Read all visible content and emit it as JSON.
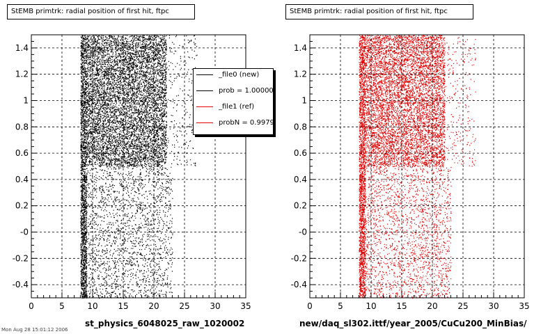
{
  "left_title": "StEMB primtrk: radial position of first hit, ftpc",
  "right_title": "StEMB primtrk: radial position of first hit, ftpc",
  "footer_text": "Mon Aug 28 15:01:12 2006",
  "legend": {
    "entries": [
      {
        "label": "_file0 (new)",
        "color": "#000000"
      },
      {
        "label": "prob = 1.000000",
        "color": "#000000"
      },
      {
        "label": "_file1 (ref)",
        "color": "#e00000"
      },
      {
        "label": "probN = 0.997986",
        "color": "#e00000"
      }
    ]
  },
  "chart_data": [
    {
      "type": "scatter",
      "title": "StEMB primtrk: radial position of first hit, ftpc",
      "xlabel": "st_physics_6048025_raw_1020002",
      "ylabel": "",
      "xlim": [
        0,
        35
      ],
      "ylim": [
        -0.5,
        1.5
      ],
      "xticks": [
        0,
        5,
        10,
        15,
        20,
        25,
        30,
        35
      ],
      "xtick_labels": [
        "0",
        "5",
        "10",
        "15",
        "20",
        "25",
        "30",
        "35"
      ],
      "yticks": [
        -0.4,
        -0.2,
        0,
        0.2,
        0.4,
        0.6,
        0.8,
        1,
        1.2,
        1.4
      ],
      "ytick_labels": [
        "-0.4",
        "-0.2",
        "-0",
        "0.2",
        "0.4",
        "0.6",
        "0.8",
        "1",
        "1.2",
        "1.4"
      ],
      "grid": true,
      "marker_color": "#000000",
      "density_regions": [
        {
          "x_range": [
            8,
            9
          ],
          "y_range": [
            -0.5,
            1.5
          ],
          "relative_density": 1.0
        },
        {
          "x_range": [
            9,
            22
          ],
          "y_range": [
            0.5,
            1.5
          ],
          "relative_density": 0.6
        },
        {
          "x_range": [
            8,
            23
          ],
          "y_range": [
            -0.5,
            0.5
          ],
          "relative_density": 0.15
        },
        {
          "x_range": [
            22,
            27
          ],
          "y_range": [
            0.5,
            1.5
          ],
          "relative_density": 0.05
        }
      ]
    },
    {
      "type": "scatter",
      "title": "StEMB primtrk: radial position of first hit, ftpc",
      "xlabel": "new/daq_sl302.ittf/year_2005/CuCu200_MinBias/",
      "ylabel": "",
      "xlim": [
        0,
        35
      ],
      "ylim": [
        -0.5,
        1.5
      ],
      "xticks": [
        0,
        5,
        10,
        15,
        20,
        25,
        30,
        35
      ],
      "xtick_labels": [
        "0",
        "5",
        "10",
        "15",
        "20",
        "25",
        "30",
        "35"
      ],
      "yticks": [
        -0.4,
        -0.2,
        0,
        0.2,
        0.4,
        0.6,
        0.8,
        1,
        1.2,
        1.4
      ],
      "ytick_labels": [
        "-0.4",
        "-0.2",
        "-0",
        "0.2",
        "0.4",
        "0.6",
        "0.8",
        "1",
        "1.2",
        "1.4"
      ],
      "grid": true,
      "marker_color": "#e00000",
      "density_regions": [
        {
          "x_range": [
            8,
            9
          ],
          "y_range": [
            -0.5,
            1.5
          ],
          "relative_density": 1.0
        },
        {
          "x_range": [
            9,
            22
          ],
          "y_range": [
            0.5,
            1.5
          ],
          "relative_density": 0.55
        },
        {
          "x_range": [
            8,
            23
          ],
          "y_range": [
            -0.5,
            0.5
          ],
          "relative_density": 0.15
        },
        {
          "x_range": [
            22,
            27
          ],
          "y_range": [
            0.5,
            1.5
          ],
          "relative_density": 0.05
        }
      ]
    }
  ]
}
